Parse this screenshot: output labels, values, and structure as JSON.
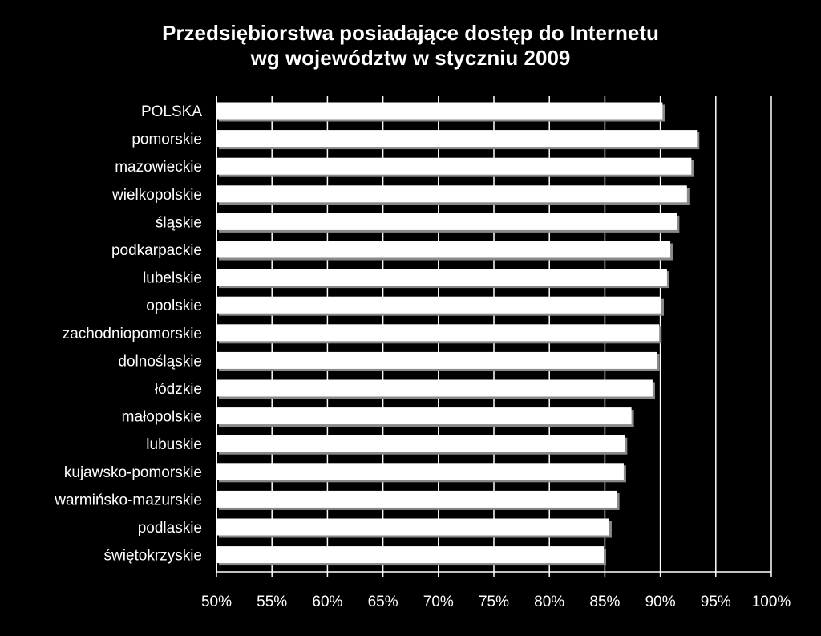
{
  "title": {
    "line1": "Przedsiębiorstwa posiadające dostęp do Internetu",
    "line2": "wg województw w styczniu 2009"
  },
  "colors": {
    "background": "#000000",
    "bar": "#ffffff",
    "bar_shadow": "#8a8a8a",
    "grid": "#ffffff",
    "text": "#ffffff"
  },
  "chart_data": {
    "type": "bar",
    "orientation": "horizontal",
    "categories": [
      "POLSKA",
      "pomorskie",
      "mazowieckie",
      "wielkopolskie",
      "śląskie",
      "podkarpackie",
      "lubelskie",
      "opolskie",
      "zachodniopomorskie",
      "dolnośląskie",
      "łódzkie",
      "małopolskie",
      "lubuskie",
      "kujawsko-pomorskie",
      "warmińsko-mazurskie",
      "podlaskie",
      "świętokrzyskie"
    ],
    "values": [
      90.2,
      93.3,
      92.8,
      92.4,
      91.5,
      90.9,
      90.6,
      90.1,
      89.9,
      89.7,
      89.3,
      87.4,
      86.8,
      86.7,
      86.1,
      85.4,
      84.9
    ],
    "xlim": [
      50,
      100
    ],
    "xticks": [
      "50%",
      "55%",
      "60%",
      "65%",
      "70%",
      "75%",
      "80%",
      "85%",
      "90%",
      "95%",
      "100%"
    ],
    "grid": "vertical major lines",
    "legend": "none"
  }
}
